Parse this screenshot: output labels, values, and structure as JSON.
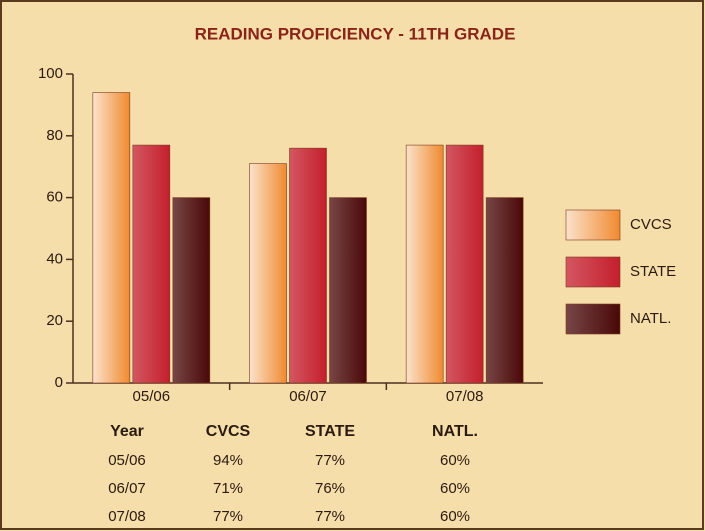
{
  "chart_data": {
    "type": "bar",
    "title": "READING PROFICIENCY - 11TH GRADE",
    "categories": [
      "05/06",
      "06/07",
      "07/08"
    ],
    "series": [
      {
        "name": "CVCS",
        "color": "#f08a30",
        "values": [
          94,
          71,
          77
        ],
        "value_labels": [
          "94%",
          "71%",
          "77%"
        ]
      },
      {
        "name": "STATE",
        "color": "#c41f2c",
        "values": [
          77,
          76,
          77
        ],
        "value_labels": [
          "77%",
          "76%",
          "77%"
        ]
      },
      {
        "name": "NATL.",
        "color": "#4a0808",
        "values": [
          60,
          60,
          60
        ],
        "value_labels": [
          "60%",
          "60%",
          "60%"
        ]
      }
    ],
    "ylim": [
      0,
      100
    ],
    "yticks": [
      0,
      20,
      40,
      60,
      80,
      100
    ],
    "grid": false,
    "legend": "right",
    "table_header": "Year"
  }
}
